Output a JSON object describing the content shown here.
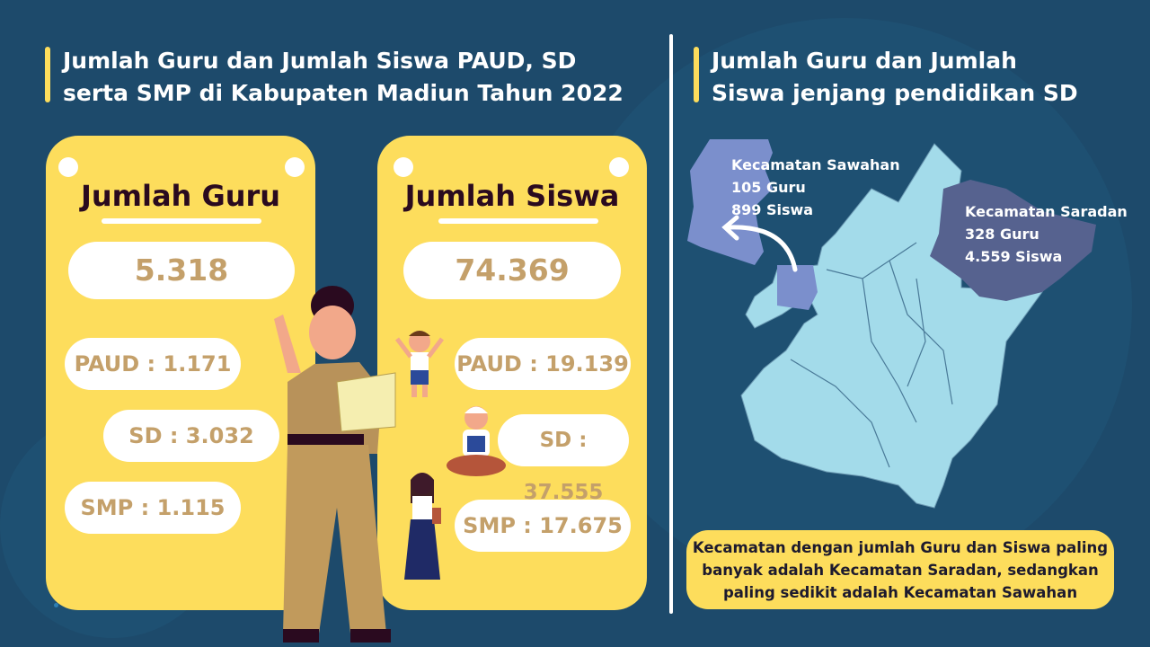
{
  "left_title": "Jumlah Guru dan Jumlah Siswa PAUD, SD serta SMP di Kabupaten Madiun Tahun 2022",
  "right_title": "Jumlah Guru dan Jumlah Siswa jenjang pendidikan SD",
  "guru": {
    "heading": "Jumlah Guru",
    "total": "5.318",
    "paud": "PAUD : 1.171",
    "sd": "SD : 3.032",
    "smp": "SMP : 1.115"
  },
  "siswa": {
    "heading": "Jumlah Siswa",
    "total": "74.369",
    "paud": "PAUD : 19.139",
    "sd": "SD : 37.555",
    "smp": "SMP : 17.675"
  },
  "map": {
    "sawahan": {
      "name": "Kecamatan Sawahan",
      "guru": "105 Guru",
      "siswa": "899 Siswa",
      "color": "#7b8fcc"
    },
    "saradan": {
      "name": "Kecamatan Saradan",
      "guru": "328 Guru",
      "siswa": "4.559 Siswa",
      "color": "#56628f"
    },
    "base_color": "#a3dbea"
  },
  "note": "Kecamatan dengan jumlah Guru dan Siswa paling banyak adalah Kecamatan Saradan, sedangkan paling sedikit adalah Kecamatan Sawahan",
  "colors": {
    "background": "#1d4a6b",
    "accent": "#fddd5c",
    "number": "#c4a06a"
  }
}
